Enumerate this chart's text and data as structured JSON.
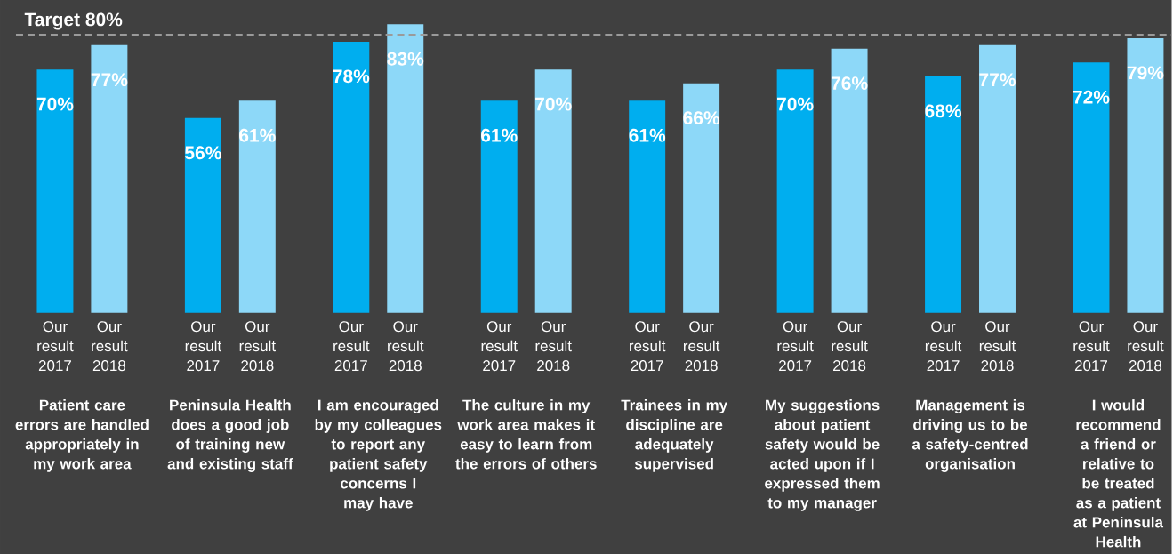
{
  "chart_data": {
    "type": "bar",
    "categories": [
      "Patient care errors are handled appropriately in my work area",
      "Peninsula Health does a good job of training new and existing staff",
      "I am encouraged by my colleagues to report any patient safety concerns I may have",
      "The culture in my work area makes it easy to learn from the errors of others",
      "Trainees in my discipline are adequately supervised",
      "My suggestions about patient safety would be acted upon if I expressed them to my manager",
      "Management is driving us to be a safety-centred organisation",
      "I would recommend a friend or relative to be treated as a patient at Peninsula Health"
    ],
    "series": [
      {
        "name": "Our result 2017",
        "color": "#00aeef",
        "values": [
          70,
          56,
          78,
          61,
          61,
          70,
          68,
          72
        ],
        "value_labels": [
          "70%",
          "56%",
          "78%",
          "61%",
          "61%",
          "70%",
          "68%",
          "72%"
        ]
      },
      {
        "name": "Our result 2018",
        "color": "#8dd8f8",
        "values": [
          77,
          61,
          83,
          70,
          66,
          76,
          77,
          79
        ],
        "value_labels": [
          "77%",
          "61%",
          "83%",
          "70%",
          "66%",
          "76%",
          "77%",
          "79%"
        ]
      }
    ],
    "ylim": [
      0,
      90
    ],
    "ref_lines": [
      {
        "axis": "y",
        "value": 80,
        "label": "Target 80%",
        "color": "#9a9a9a",
        "line_style": "dashed"
      }
    ]
  }
}
